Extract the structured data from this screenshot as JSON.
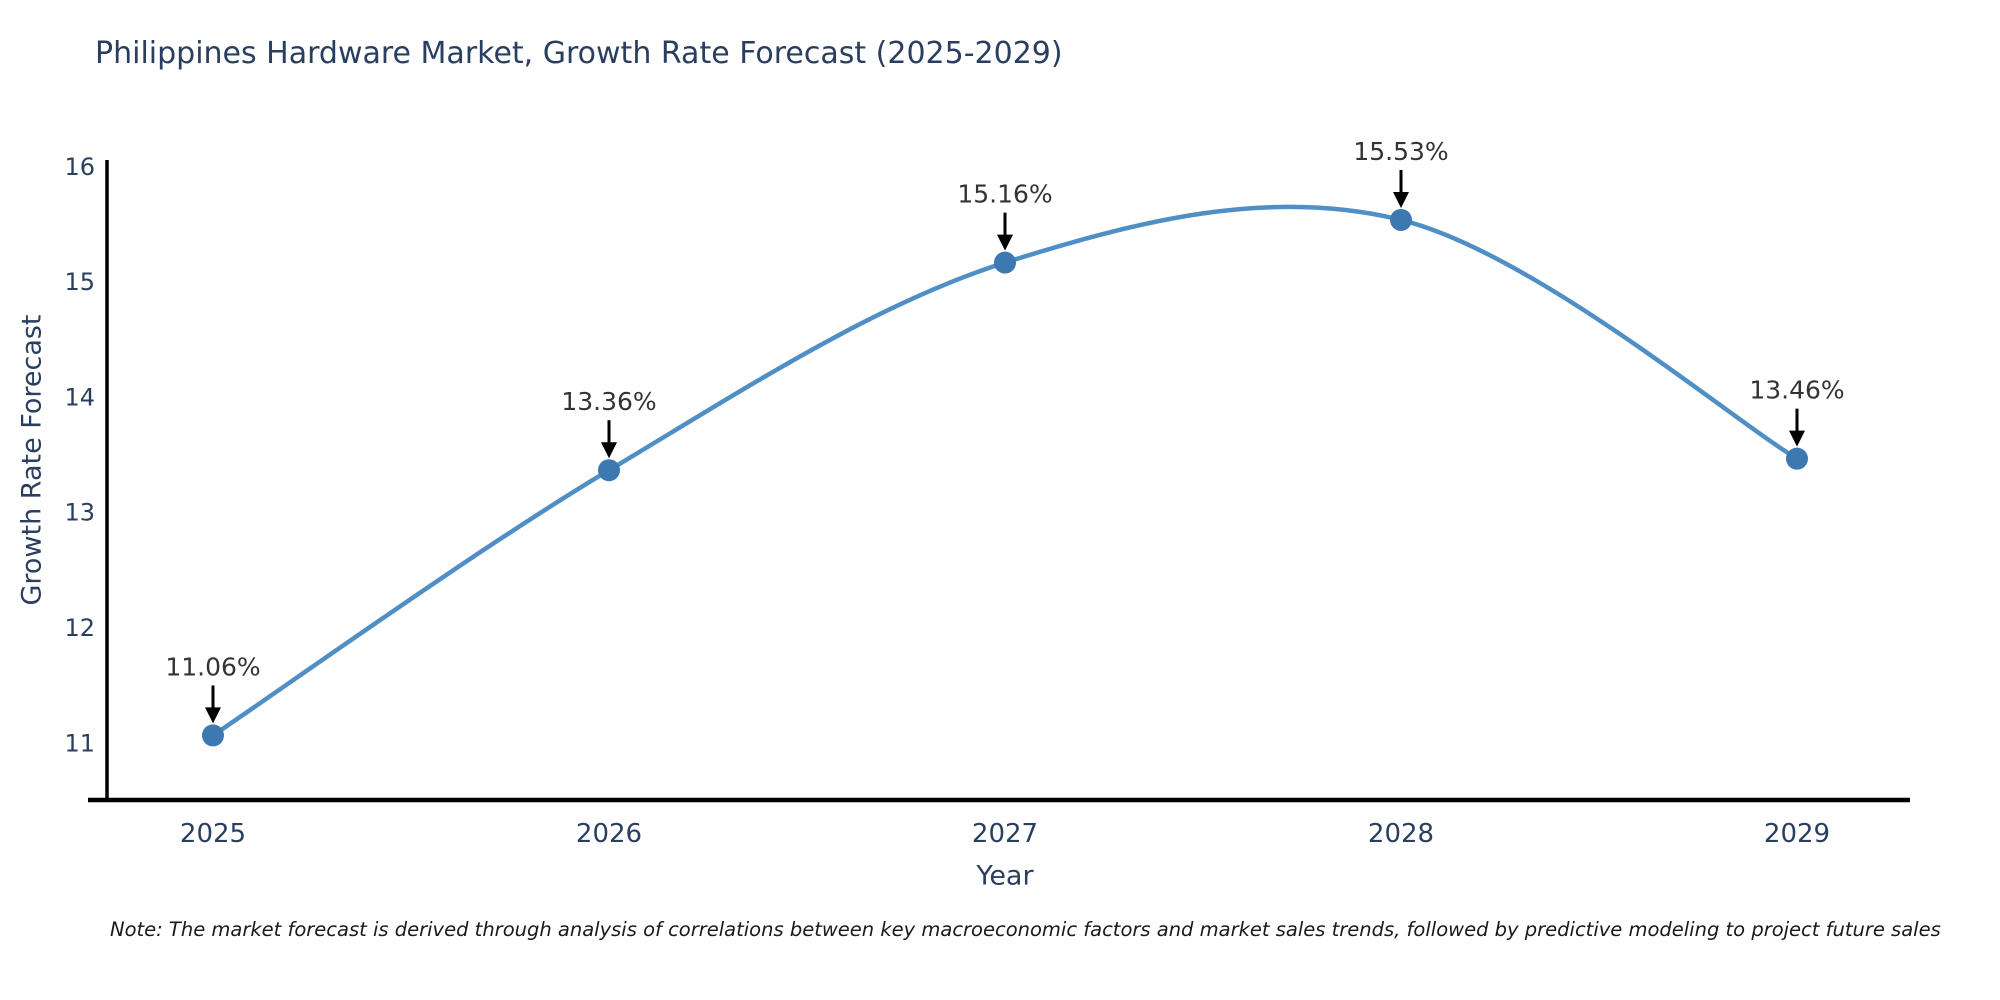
{
  "note": "Note: The market forecast is derived through analysis of correlations between key macroeconomic factors and market sales trends, followed by predictive modeling to project future sales",
  "chart_data": {
    "type": "line",
    "title": "Philippines Hardware Market, Growth Rate Forecast (2025-2029)",
    "xlabel": "Year",
    "ylabel": "Growth Rate Forecast",
    "categories": [
      "2025",
      "2026",
      "2027",
      "2028",
      "2029"
    ],
    "values": [
      11.06,
      13.36,
      15.16,
      15.53,
      13.46
    ],
    "data_labels": [
      "11.06%",
      "13.36%",
      "15.16%",
      "15.53%",
      "13.46%"
    ],
    "yticks": [
      11,
      12,
      13,
      14,
      15,
      16
    ],
    "ylim": [
      10.5,
      16.05
    ],
    "line_shape": "spline",
    "grid": false,
    "legend": "none",
    "markers": true,
    "annotation_style": "value-label-with-down-arrow",
    "colors": {
      "line": "#4f8fc6",
      "marker": "#3d79b0",
      "axis": "#000000",
      "tick_text": "#2a3f5f",
      "title_text": "#2a3f5f",
      "annotation_text": "#333333",
      "arrow": "#000000",
      "background": "#ffffff"
    }
  }
}
